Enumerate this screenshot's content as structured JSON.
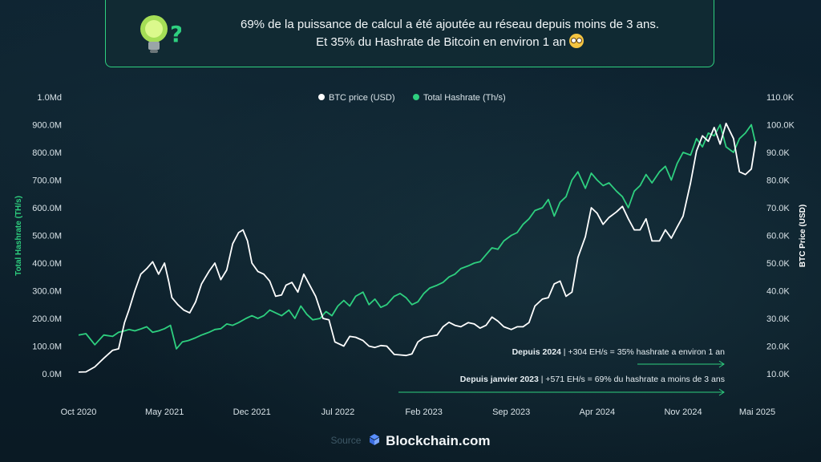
{
  "banner": {
    "line1": "69% de la puissance de calcul a été ajoutée au réseau depuis moins de 3 ans.",
    "line2": "Et 35% du Hashrate de Bitcoin en environ 1 an",
    "icon": "lightbulb-question-icon",
    "emoji": "flushed-face-emoji"
  },
  "source": {
    "label": "Source",
    "brand": "Blockchain.com",
    "icon": "blockchain-logo-icon"
  },
  "colors": {
    "price": "#ffffff",
    "hashrate": "#2ecf7f",
    "accent": "#2ecf7f",
    "background": "#0b1e2a"
  },
  "chart_data": {
    "type": "line",
    "legend_position": "top-center",
    "grid": false,
    "x_ticks": [
      "Oct 2020",
      "May 2021",
      "Dec 2021",
      "Jul 2022",
      "Feb 2023",
      "Sep 2023",
      "Apr 2024",
      "Nov 2024",
      "Mai 2025"
    ],
    "y_left": {
      "label": "Total Hashrate (TH/s)",
      "ticks": [
        "0.0M",
        "100.0M",
        "200.0M",
        "300.0M",
        "400.0M",
        "500.0M",
        "600.0M",
        "700.0M",
        "800.0M",
        "900.0M",
        "1.0Md"
      ],
      "range": [
        0,
        1000000000
      ]
    },
    "y_right": {
      "label": "BTC Price (USD)",
      "ticks": [
        "10.0K",
        "20.0K",
        "30.0K",
        "40.0K",
        "50.0K",
        "60.0K",
        "70.0K",
        "80.0K",
        "90.0K",
        "100.0K",
        "110.0K"
      ],
      "range": [
        10000,
        110000
      ]
    },
    "series": [
      {
        "name": "BTC price (USD)",
        "axis": "right",
        "color": "#ffffff",
        "x": [
          2020.75,
          2020.8,
          2020.86,
          2020.92,
          2020.98,
          2021.02,
          2021.06,
          2021.09,
          2021.13,
          2021.17,
          2021.21,
          2021.25,
          2021.29,
          2021.33,
          2021.36,
          2021.38,
          2021.42,
          2021.46,
          2021.5,
          2021.54,
          2021.58,
          2021.63,
          2021.67,
          2021.71,
          2021.75,
          2021.79,
          2021.83,
          2021.86,
          2021.89,
          2021.92,
          2021.96,
          2022.0,
          2022.04,
          2022.08,
          2022.12,
          2022.15,
          2022.19,
          2022.23,
          2022.27,
          2022.31,
          2022.35,
          2022.4,
          2022.44,
          2022.48,
          2022.54,
          2022.58,
          2022.62,
          2022.67,
          2022.71,
          2022.75,
          2022.79,
          2022.83,
          2022.88,
          2022.92,
          2022.96,
          2023.0,
          2023.04,
          2023.08,
          2023.12,
          2023.17,
          2023.21,
          2023.25,
          2023.29,
          2023.33,
          2023.38,
          2023.42,
          2023.46,
          2023.5,
          2023.54,
          2023.58,
          2023.62,
          2023.67,
          2023.71,
          2023.75,
          2023.79,
          2023.83,
          2023.88,
          2023.92,
          2023.96,
          2024.0,
          2024.04,
          2024.08,
          2024.12,
          2024.17,
          2024.21,
          2024.25,
          2024.29,
          2024.33,
          2024.38,
          2024.42,
          2024.46,
          2024.5,
          2024.54,
          2024.58,
          2024.62,
          2024.67,
          2024.71,
          2024.75,
          2024.79,
          2024.83,
          2024.88,
          2024.92,
          2024.96,
          2025.0,
          2025.04,
          2025.08,
          2025.12,
          2025.17,
          2025.21,
          2025.25,
          2025.29,
          2025.32
        ],
        "values": [
          10600,
          10700,
          12500,
          15600,
          18500,
          19000,
          28500,
          33000,
          40000,
          46000,
          48000,
          50500,
          46000,
          50000,
          43000,
          37500,
          35000,
          33000,
          32000,
          36000,
          42500,
          47000,
          50000,
          44000,
          47500,
          57000,
          61000,
          62000,
          58000,
          50000,
          47000,
          46000,
          43500,
          38000,
          38500,
          42000,
          43000,
          39500,
          46000,
          42000,
          38000,
          30000,
          29500,
          21500,
          20000,
          23500,
          23200,
          22000,
          20000,
          19500,
          20200,
          20000,
          17000,
          16800,
          16600,
          17200,
          21500,
          23000,
          23500,
          24000,
          27000,
          28600,
          27500,
          27000,
          28500,
          28000,
          26500,
          27500,
          30500,
          29000,
          27000,
          26000,
          27000,
          27000,
          28500,
          34500,
          37000,
          37500,
          42500,
          43500,
          38000,
          39500,
          52000,
          59500,
          70000,
          68000,
          64000,
          66500,
          68500,
          70500,
          66000,
          62000,
          62000,
          66000,
          58000,
          58000,
          62000,
          59000,
          63000,
          67000,
          79000,
          90500,
          96000,
          94000,
          99000,
          93000,
          100500,
          95000,
          83000,
          82000,
          84000,
          94000
        ],
        "_x": "calendar years"
      },
      {
        "name": "Total Hashrate (Th/s)",
        "axis": "left",
        "color": "#2ecf7f",
        "x": [
          2020.75,
          2020.8,
          2020.86,
          2020.92,
          2020.98,
          2021.02,
          2021.06,
          2021.09,
          2021.13,
          2021.17,
          2021.21,
          2021.25,
          2021.29,
          2021.33,
          2021.37,
          2021.41,
          2021.45,
          2021.49,
          2021.54,
          2021.58,
          2021.63,
          2021.67,
          2021.71,
          2021.75,
          2021.79,
          2021.83,
          2021.88,
          2021.92,
          2021.96,
          2022.0,
          2022.04,
          2022.08,
          2022.12,
          2022.17,
          2022.21,
          2022.25,
          2022.29,
          2022.33,
          2022.38,
          2022.42,
          2022.46,
          2022.5,
          2022.54,
          2022.58,
          2022.62,
          2022.67,
          2022.71,
          2022.75,
          2022.79,
          2022.83,
          2022.88,
          2022.92,
          2022.96,
          2023.0,
          2023.04,
          2023.08,
          2023.12,
          2023.17,
          2023.21,
          2023.25,
          2023.29,
          2023.33,
          2023.38,
          2023.42,
          2023.46,
          2023.5,
          2023.54,
          2023.58,
          2023.62,
          2023.67,
          2023.71,
          2023.75,
          2023.79,
          2023.83,
          2023.88,
          2023.92,
          2023.96,
          2024.0,
          2024.04,
          2024.08,
          2024.12,
          2024.17,
          2024.21,
          2024.25,
          2024.29,
          2024.33,
          2024.38,
          2024.42,
          2024.46,
          2024.5,
          2024.54,
          2024.58,
          2024.62,
          2024.67,
          2024.71,
          2024.75,
          2024.79,
          2024.83,
          2024.88,
          2024.92,
          2024.96,
          2025.0,
          2025.04,
          2025.08,
          2025.12,
          2025.17,
          2025.21,
          2025.25,
          2025.29,
          2025.32
        ],
        "values": [
          140,
          145,
          105,
          140,
          135,
          150,
          155,
          160,
          155,
          162,
          170,
          150,
          155,
          163,
          175,
          90,
          115,
          120,
          130,
          140,
          150,
          160,
          163,
          180,
          175,
          185,
          200,
          210,
          200,
          210,
          230,
          220,
          210,
          230,
          200,
          245,
          215,
          195,
          200,
          225,
          210,
          245,
          265,
          245,
          280,
          295,
          250,
          270,
          240,
          250,
          280,
          290,
          275,
          250,
          260,
          290,
          310,
          320,
          330,
          350,
          360,
          380,
          390,
          400,
          405,
          430,
          455,
          450,
          480,
          500,
          510,
          540,
          560,
          590,
          600,
          630,
          570,
          620,
          640,
          700,
          730,
          670,
          725,
          700,
          680,
          690,
          660,
          640,
          600,
          660,
          680,
          720,
          690,
          730,
          750,
          700,
          760,
          800,
          790,
          850,
          820,
          870,
          860,
          900,
          820,
          800,
          850,
          870,
          900,
          830
        ],
        "_x": "calendar years",
        "_unit": "millions TH/s"
      }
    ],
    "annotations": [
      {
        "bold": "Depuis 2024",
        "text": "| +304 EH/s = 35% hashrate a environ 1 an"
      },
      {
        "bold": "Depuis janvier 2023",
        "text": "| +571 EH/s = 69% du hashrate a moins de 3 ans"
      }
    ]
  }
}
